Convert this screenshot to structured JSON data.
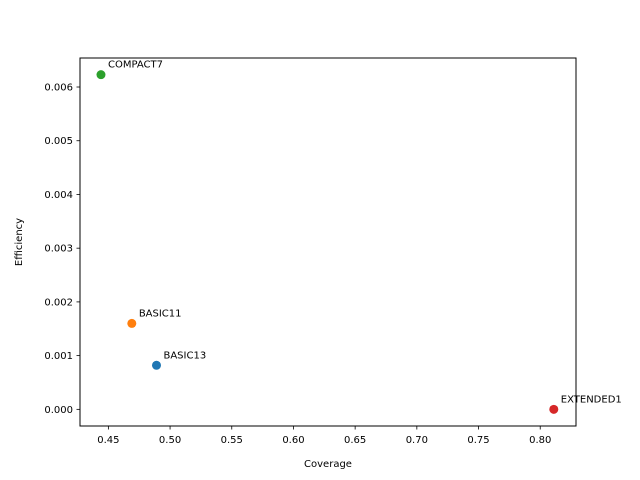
{
  "chart_data": {
    "type": "scatter",
    "title": "",
    "xlabel": "Coverage",
    "ylabel": "Efficiency",
    "xlim": [
      0.427,
      0.829
    ],
    "ylim": [
      -0.00031,
      0.00654
    ],
    "xticks": [
      0.45,
      0.5,
      0.55,
      0.6,
      0.65,
      0.7,
      0.75,
      0.8
    ],
    "xtick_labels": [
      "0.45",
      "0.50",
      "0.55",
      "0.60",
      "0.65",
      "0.70",
      "0.75",
      "0.80"
    ],
    "yticks": [
      0.0,
      0.001,
      0.002,
      0.003,
      0.004,
      0.005,
      0.006
    ],
    "ytick_labels": [
      "0.000",
      "0.001",
      "0.002",
      "0.003",
      "0.004",
      "0.005",
      "0.006"
    ],
    "grid": false,
    "legend": "none",
    "points": [
      {
        "label": "BASIC13",
        "x": 0.489,
        "y": 0.00082,
        "color": "#1f77b4"
      },
      {
        "label": "BASIC11",
        "x": 0.469,
        "y": 0.0016,
        "color": "#ff7f0e"
      },
      {
        "label": "COMPACT7",
        "x": 0.444,
        "y": 0.00623,
        "color": "#2ca02c"
      },
      {
        "label": "EXTENDED1",
        "x": 0.811,
        "y": 0.0,
        "color": "#d62728"
      }
    ]
  }
}
